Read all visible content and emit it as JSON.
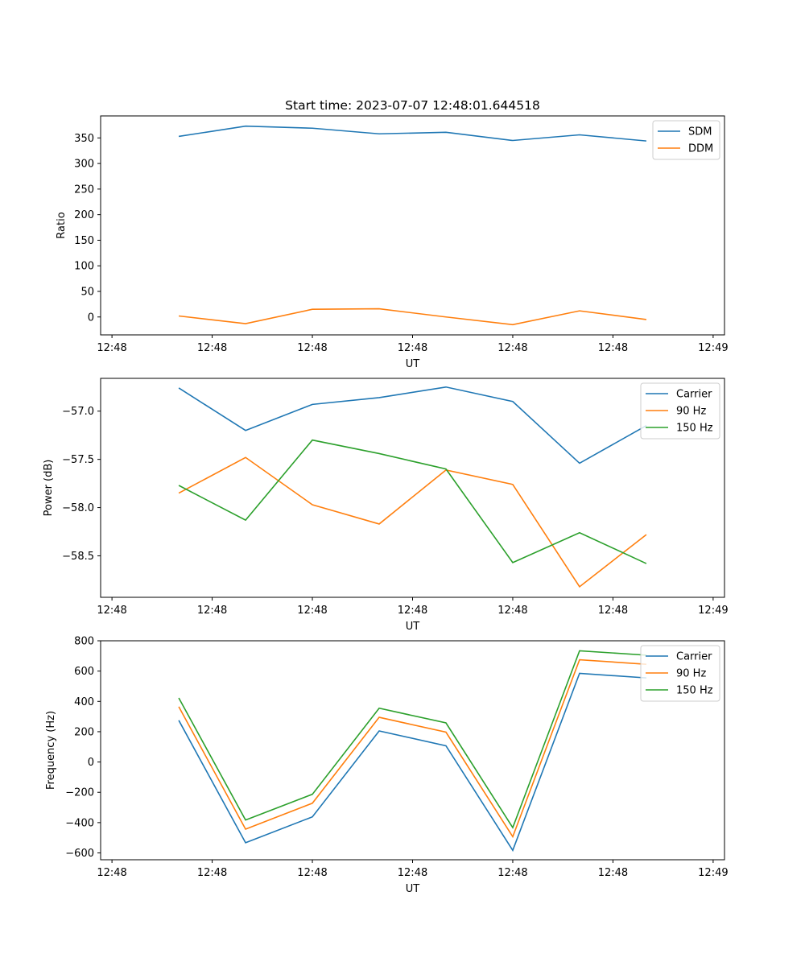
{
  "chart_data": [
    {
      "type": "line",
      "title": "Start time: 2023-07-07 12:48:01.644518",
      "xlabel": "UT",
      "ylabel": "Ratio",
      "x": [
        1,
        2,
        3,
        4,
        5,
        6,
        7,
        8
      ],
      "xlim": [
        -0.17,
        9.17
      ],
      "ylim": [
        -35,
        393
      ],
      "x_ticks": [
        0,
        1.5,
        3,
        4.5,
        6,
        7.5,
        9
      ],
      "x_tick_labels": [
        "12:48",
        "12:48",
        "12:48",
        "12:48",
        "12:48",
        "12:48",
        "12:49"
      ],
      "y_ticks": [
        0,
        50,
        100,
        150,
        200,
        250,
        300,
        350
      ],
      "y_tick_labels": [
        "0",
        "50",
        "100",
        "150",
        "200",
        "250",
        "300",
        "350"
      ],
      "legend_position": "top-right",
      "series": [
        {
          "name": "SDM",
          "color": "#1f77b4",
          "values": [
            353,
            373,
            369,
            358,
            361,
            345,
            356,
            344
          ]
        },
        {
          "name": "DDM",
          "color": "#ff7f0e",
          "values": [
            2,
            -13,
            15,
            16,
            0,
            -15,
            12,
            -5
          ]
        }
      ]
    },
    {
      "type": "line",
      "title": "",
      "xlabel": "UT",
      "ylabel": "Power (dB)",
      "x": [
        1,
        2,
        3,
        4,
        5,
        6,
        7,
        8
      ],
      "xlim": [
        -0.17,
        9.17
      ],
      "ylim": [
        -58.93,
        -56.66
      ],
      "x_ticks": [
        0,
        1.5,
        3,
        4.5,
        6,
        7.5,
        9
      ],
      "x_tick_labels": [
        "12:48",
        "12:48",
        "12:48",
        "12:48",
        "12:48",
        "12:48",
        "12:49"
      ],
      "y_ticks": [
        -58.5,
        -58.0,
        -57.5,
        -57.0
      ],
      "y_tick_labels": [
        "−58.5",
        "−58.0",
        "−57.5",
        "−57.0"
      ],
      "legend_position": "top-right",
      "series": [
        {
          "name": "Carrier",
          "color": "#1f77b4",
          "values": [
            -56.76,
            -57.2,
            -56.93,
            -56.86,
            -56.75,
            -56.9,
            -57.54,
            -57.15
          ]
        },
        {
          "name": "90 Hz",
          "color": "#ff7f0e",
          "values": [
            -57.85,
            -57.48,
            -57.97,
            -58.17,
            -57.61,
            -57.76,
            -58.82,
            -58.28
          ]
        },
        {
          "name": "150 Hz",
          "color": "#2ca02c",
          "values": [
            -57.77,
            -58.13,
            -57.3,
            -57.44,
            -57.6,
            -58.57,
            -58.26,
            -58.58
          ]
        }
      ]
    },
    {
      "type": "line",
      "title": "",
      "xlabel": "UT",
      "ylabel": "Frequency (Hz)",
      "x": [
        1,
        2,
        3,
        4,
        5,
        6,
        7,
        8
      ],
      "xlim": [
        -0.17,
        9.17
      ],
      "ylim": [
        -645,
        800
      ],
      "x_ticks": [
        0,
        1.5,
        3,
        4.5,
        6,
        7.5,
        9
      ],
      "x_tick_labels": [
        "12:48",
        "12:48",
        "12:48",
        "12:48",
        "12:48",
        "12:48",
        "12:49"
      ],
      "y_ticks": [
        -600,
        -400,
        -200,
        0,
        200,
        400,
        600,
        800
      ],
      "y_tick_labels": [
        "−600",
        "−400",
        "−200",
        "0",
        "200",
        "400",
        "600",
        "800"
      ],
      "legend_position": "top-right",
      "series": [
        {
          "name": "Carrier",
          "color": "#1f77b4",
          "values": [
            275,
            -533,
            -362,
            205,
            107,
            -583,
            585,
            555
          ]
        },
        {
          "name": "90 Hz",
          "color": "#ff7f0e",
          "values": [
            365,
            -443,
            -272,
            295,
            197,
            -493,
            675,
            645
          ]
        },
        {
          "name": "150 Hz",
          "color": "#2ca02c",
          "values": [
            423,
            -383,
            -213,
            355,
            258,
            -433,
            734,
            705
          ]
        }
      ]
    }
  ]
}
